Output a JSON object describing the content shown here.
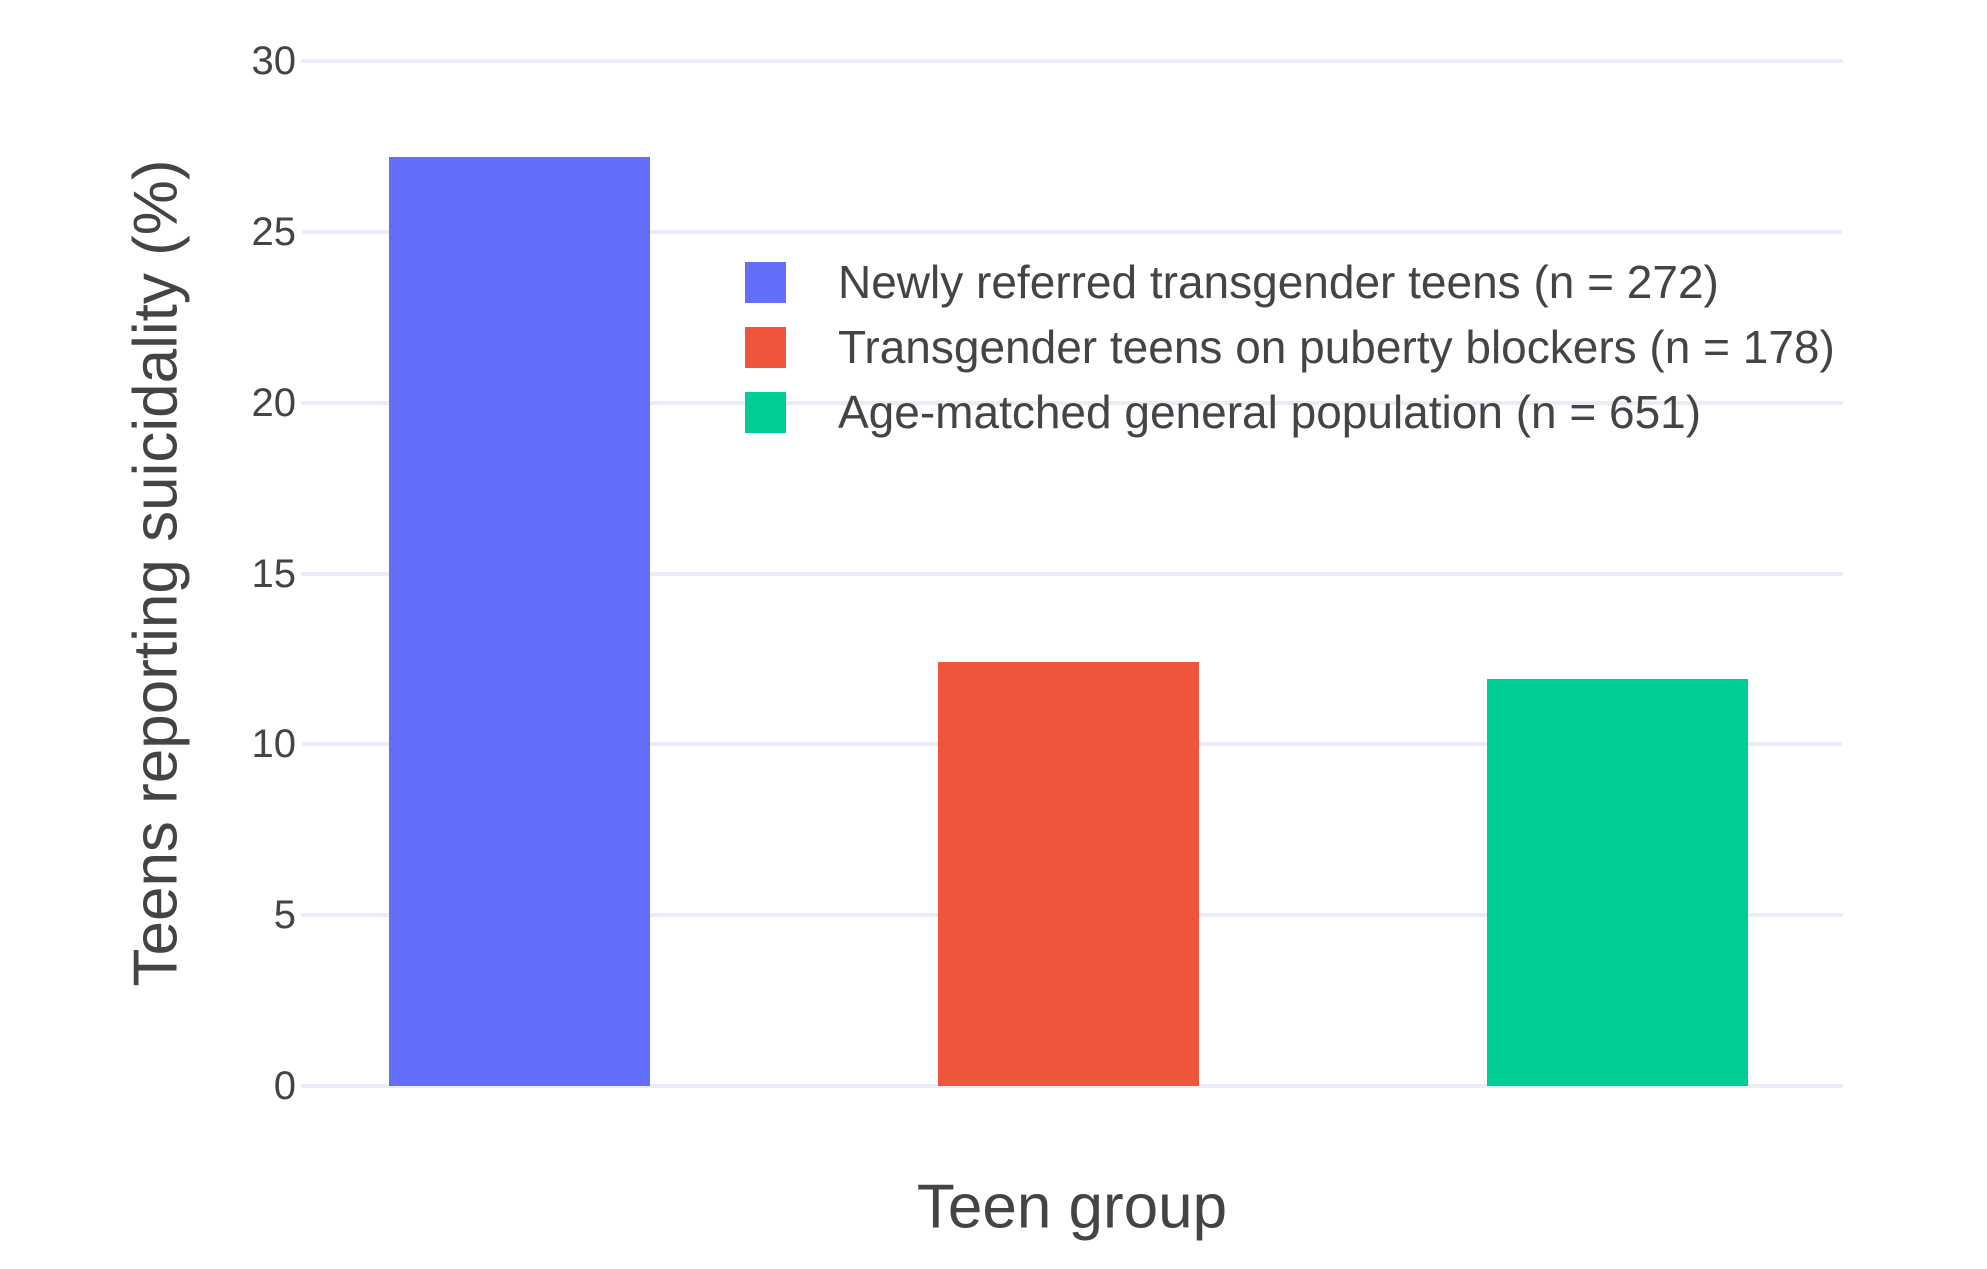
{
  "chart_data": {
    "type": "bar",
    "title": "",
    "xlabel": "Teen group",
    "ylabel": "Teens reporting suicidality (%)",
    "ylim": [
      0,
      30
    ],
    "yticks": [
      0,
      5,
      10,
      15,
      20,
      25,
      30
    ],
    "grid": true,
    "background_color": "#FFFFFF",
    "grid_color": "#E8EDF6",
    "text_color": "#444444",
    "legend_position": "inside-top-center",
    "categories": [
      "Newly referred transgender teens (n = 272)",
      "Transgender teens on puberty blockers (n = 178)",
      "Age-matched general population (n = 651)"
    ],
    "values": [
      27.2,
      12.4,
      11.9
    ],
    "colors": [
      "#636EFA",
      "#EF553B",
      "#00CC96"
    ]
  }
}
